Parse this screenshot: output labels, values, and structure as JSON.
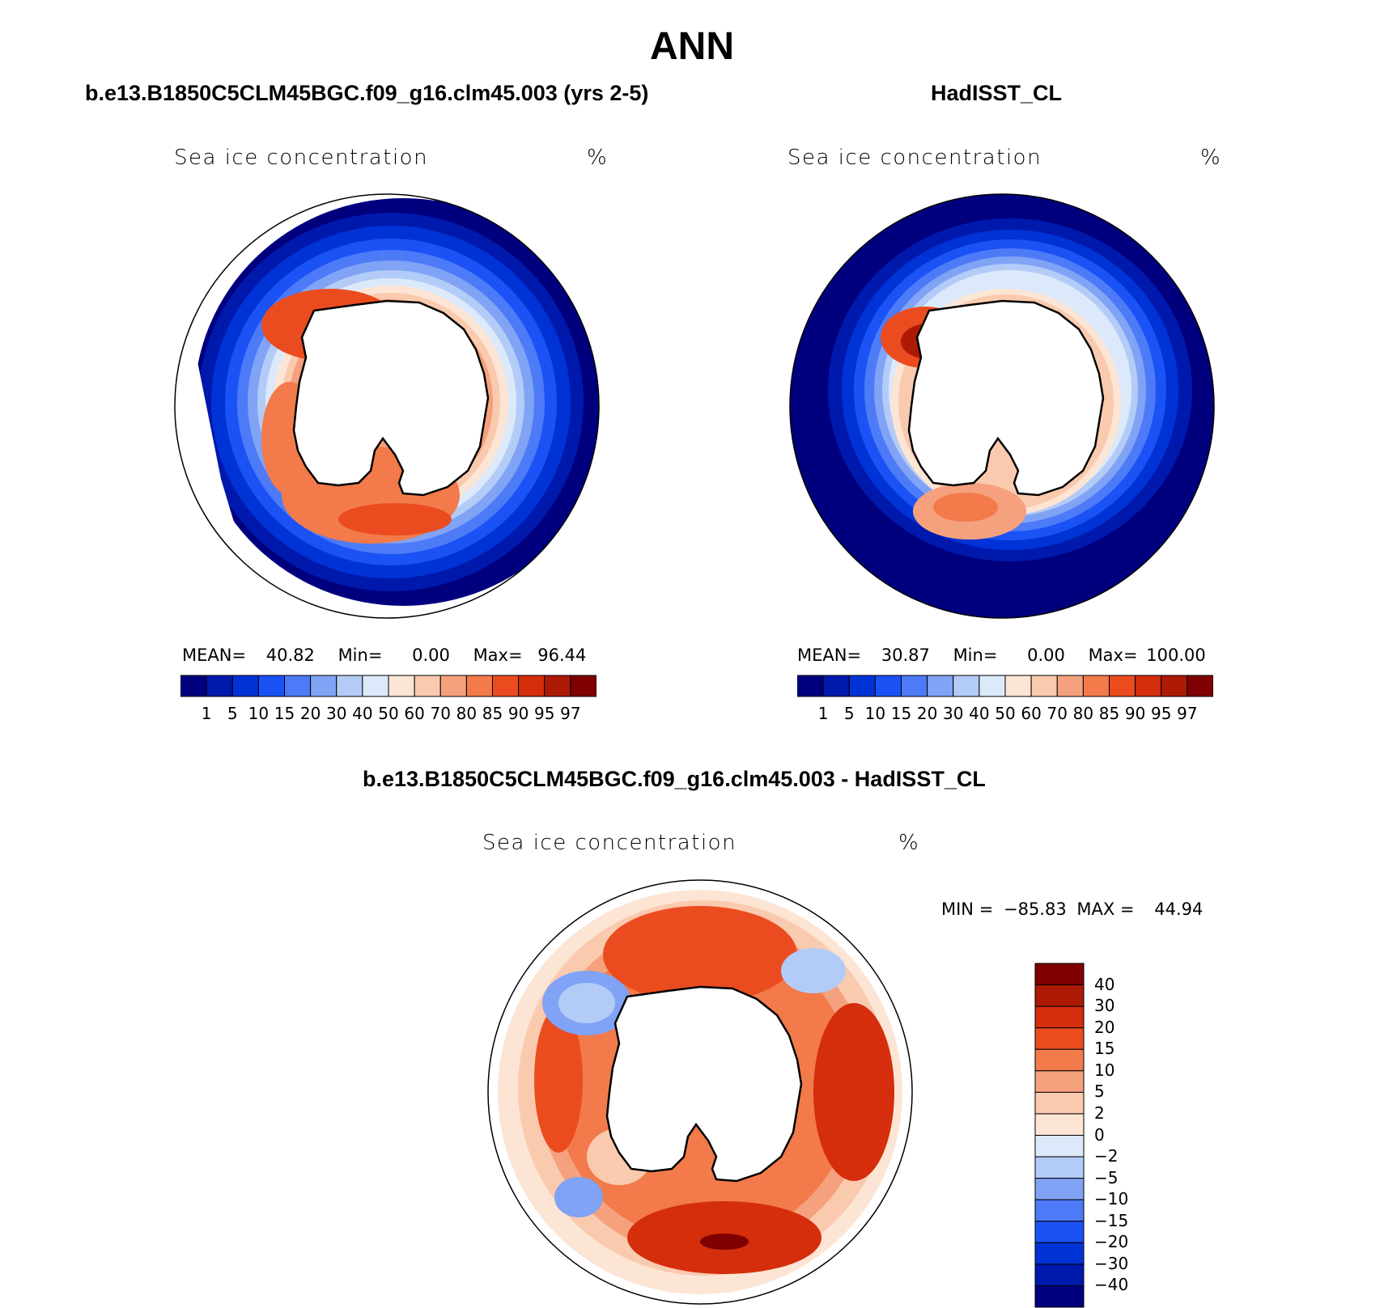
{
  "figure": {
    "title": "ANN",
    "colors": {
      "seq": [
        "#00007F",
        "#0019AD",
        "#0033D6",
        "#1A52F5",
        "#4D7AF7",
        "#80A3F5",
        "#B3CCF7",
        "#DCE9FA",
        "#FCE5D4",
        "#FACAAF",
        "#F5A17D",
        "#F27A4B",
        "#EB4C1F",
        "#D42E0C",
        "#AD1A05",
        "#7F0000"
      ],
      "diff": [
        "#00007F",
        "#0019AD",
        "#0033D6",
        "#1A52F5",
        "#4D7AF7",
        "#80A3F5",
        "#B3CCF7",
        "#DCE9FA",
        "#FCE5D4",
        "#FACAAF",
        "#F5A17D",
        "#F27A4B",
        "#EB4C1F",
        "#D42E0C",
        "#AD1A05",
        "#7F0000"
      ],
      "land": "#ffffff",
      "coast": "#000000"
    }
  },
  "panels": {
    "model": {
      "title": "b.e13.B1850C5CLM45BGC.f09_g16.clm45.003 (yrs 2-5)",
      "variable": "Sea ice concentration",
      "units": "%",
      "mean_label": "MEAN=",
      "mean_value": "40.82",
      "min_label": "Min=",
      "min_value": "0.00",
      "max_label": "Max=",
      "max_value": "96.44"
    },
    "obs": {
      "title": "HadISST_CL",
      "variable": "Sea ice concentration",
      "units": "%",
      "mean_label": "MEAN=",
      "mean_value": "30.87",
      "min_label": "Min=",
      "min_value": "0.00",
      "max_label": "Max=",
      "max_value": "100.00"
    },
    "diff": {
      "title": "b.e13.B1850C5CLM45BGC.f09_g16.clm45.003 - HadISST_CL",
      "variable": "Sea ice concentration",
      "units": "%",
      "min_label": "MIN =",
      "min_value": "−85.83",
      "max_label": "MAX =",
      "max_value": "44.94"
    }
  },
  "colorbars": {
    "seq_ticks": [
      "1",
      "5",
      "10",
      "15",
      "20",
      "30",
      "40",
      "50",
      "60",
      "70",
      "80",
      "85",
      "90",
      "95",
      "97"
    ],
    "diff_ticks": [
      "40",
      "30",
      "20",
      "15",
      "10",
      "5",
      "2",
      "0",
      "−2",
      "−5",
      "−10",
      "−15",
      "−20",
      "−30",
      "−40"
    ]
  }
}
